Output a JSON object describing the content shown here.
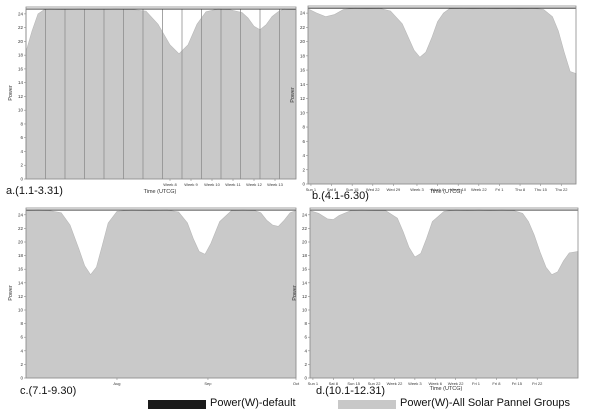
{
  "chart_data": [
    {
      "type": "area",
      "panel_label": "a.(1.1-3.31)",
      "xlabel": "Time (UTCG)",
      "ylabel": "Power",
      "ylim": [
        0,
        25
      ],
      "yticks": [
        0,
        2,
        4,
        6,
        8,
        10,
        12,
        14,
        16,
        18,
        20,
        22,
        24
      ],
      "xlim": [
        0,
        90
      ],
      "xticks": [
        {
          "x": 48,
          "label": "Week 8"
        },
        {
          "x": 55,
          "label": "Week 9"
        },
        {
          "x": 62,
          "label": "Week 10"
        },
        {
          "x": 69,
          "label": "Week 11"
        },
        {
          "x": 76,
          "label": "Week 12"
        },
        {
          "x": 83,
          "label": "Week 13"
        }
      ],
      "vlines": [
        0,
        6.5,
        13,
        19.5,
        26,
        32.5,
        39,
        45.5,
        52,
        58.5,
        65,
        71.5,
        78,
        84.5
      ],
      "x": [
        0,
        2,
        4,
        6,
        8,
        12,
        18,
        24,
        30,
        36,
        40,
        44,
        48,
        51,
        54,
        57,
        60,
        64,
        68,
        72,
        74,
        76,
        78,
        80,
        82,
        84,
        86,
        88,
        90
      ],
      "values": [
        18.5,
        21.5,
        24,
        24.6,
        24.7,
        24.6,
        24.7,
        24.6,
        24.7,
        24.6,
        24.4,
        22.5,
        19.5,
        18.2,
        19.5,
        22.5,
        24.3,
        24.7,
        24.6,
        24.2,
        23.4,
        22.2,
        21.7,
        22.4,
        23.6,
        24.3,
        24.7,
        24.6,
        24.6
      ],
      "default_level": 24.7
    },
    {
      "type": "area",
      "panel_label": "b.(4.1-6.30)",
      "xlabel": "Time (UTCG)",
      "ylabel": "Power",
      "ylim": [
        0,
        25
      ],
      "yticks": [
        0,
        2,
        4,
        6,
        8,
        10,
        12,
        14,
        16,
        18,
        20,
        22,
        24
      ],
      "xlim": [
        0,
        91
      ],
      "xticks": [
        {
          "x": 1,
          "label": "Sun 1"
        },
        {
          "x": 8,
          "label": "Sat 8"
        },
        {
          "x": 15,
          "label": "Sun 15"
        },
        {
          "x": 22,
          "label": "Wed 22"
        },
        {
          "x": 29,
          "label": "Wed 29"
        },
        {
          "x": 37,
          "label": "Week 3"
        },
        {
          "x": 44,
          "label": "Week 6"
        },
        {
          "x": 51,
          "label": "Week 10"
        },
        {
          "x": 58,
          "label": "Week 22"
        },
        {
          "x": 65,
          "label": "Fri 1"
        },
        {
          "x": 72,
          "label": "Thu 8"
        },
        {
          "x": 79,
          "label": "Thu 15"
        },
        {
          "x": 86,
          "label": "Thu 22"
        }
      ],
      "x": [
        0,
        3,
        6,
        9,
        12,
        16,
        20,
        24,
        28,
        32,
        36,
        38,
        40,
        42,
        44,
        46,
        48,
        52,
        56,
        60,
        64,
        68,
        72,
        76,
        80,
        83,
        85,
        87,
        89,
        91
      ],
      "values": [
        24.6,
        24,
        23.5,
        23.8,
        24.5,
        24.7,
        24.6,
        24.7,
        24.3,
        22.5,
        18.8,
        17.8,
        18.5,
        20.5,
        22.8,
        24,
        24.6,
        24.7,
        24.6,
        24.7,
        24.6,
        24.7,
        24.6,
        24.7,
        24.5,
        23.5,
        21.5,
        18.5,
        15.8,
        15.5
      ],
      "default_level": 24.7
    },
    {
      "type": "area",
      "panel_label": "c.(7.1-9.30)",
      "xlabel": "",
      "ylabel": "Power",
      "ylim": [
        0,
        25
      ],
      "yticks": [
        0,
        2,
        4,
        6,
        8,
        10,
        12,
        14,
        16,
        18,
        20,
        22,
        24
      ],
      "xlim": [
        0,
        92
      ],
      "xticks": [
        {
          "x": 31,
          "label": "Aug"
        },
        {
          "x": 62,
          "label": "Sep"
        },
        {
          "x": 92,
          "label": "Oct"
        }
      ],
      "x": [
        0,
        4,
        8,
        12,
        15,
        18,
        20,
        22,
        24,
        26,
        28,
        31,
        36,
        42,
        48,
        52,
        55,
        57,
        59,
        61,
        63,
        66,
        70,
        74,
        78,
        80,
        82,
        84,
        86,
        88,
        90,
        92
      ],
      "values": [
        24.6,
        24.7,
        24.6,
        24.3,
        22.5,
        19,
        16.5,
        15.2,
        16.3,
        19.5,
        22.8,
        24.5,
        24.7,
        24.6,
        24.7,
        24.4,
        22.8,
        20.5,
        18.6,
        18.2,
        19.8,
        23,
        24.6,
        24.7,
        24.6,
        24.3,
        23.2,
        22.5,
        22.3,
        23.2,
        24.3,
        24.6
      ],
      "default_level": 24.7
    },
    {
      "type": "area",
      "panel_label": "d.(10.1-12.31)",
      "xlabel": "Time (UTCG)",
      "ylabel": "Power",
      "ylim": [
        0,
        25
      ],
      "yticks": [
        0,
        2,
        4,
        6,
        8,
        10,
        12,
        14,
        16,
        18,
        20,
        22,
        24
      ],
      "xlim": [
        0,
        92
      ],
      "xticks": [
        {
          "x": 1,
          "label": "Sun 1"
        },
        {
          "x": 8,
          "label": "Sat 8"
        },
        {
          "x": 15,
          "label": "Sun 15"
        },
        {
          "x": 22,
          "label": "Sun 22"
        },
        {
          "x": 29,
          "label": "Week 22"
        },
        {
          "x": 36,
          "label": "Week 3"
        },
        {
          "x": 43,
          "label": "Week 6"
        },
        {
          "x": 50,
          "label": "Week 22"
        },
        {
          "x": 57,
          "label": "Fri 1"
        },
        {
          "x": 64,
          "label": "Fri 8"
        },
        {
          "x": 71,
          "label": "Fri 15"
        },
        {
          "x": 78,
          "label": "Fri 22"
        }
      ],
      "x": [
        0,
        3,
        6,
        8,
        10,
        14,
        18,
        22,
        26,
        30,
        32,
        34,
        36,
        38,
        40,
        42,
        46,
        50,
        54,
        58,
        62,
        66,
        70,
        73,
        75,
        77,
        79,
        81,
        83,
        85,
        87,
        89,
        92
      ],
      "values": [
        24.6,
        24.2,
        23.4,
        23.3,
        23.9,
        24.6,
        24.7,
        24.6,
        24.6,
        23.5,
        21.5,
        19.2,
        17.8,
        18.3,
        20.5,
        23,
        24.5,
        24.7,
        24.6,
        24.7,
        24.6,
        24.7,
        24.6,
        24.2,
        23,
        21,
        18.5,
        16.3,
        15.2,
        15.6,
        17.2,
        18.4,
        18.6
      ],
      "default_level": 24.7
    }
  ],
  "legend": {
    "items": [
      {
        "label": "Power(W)-default",
        "color": "#1a1a1a"
      },
      {
        "label": "Power(W)-All Solar Pannel Groups",
        "color": "#c8c8c8"
      }
    ]
  },
  "colors": {
    "fill": "#c9c9c9",
    "default_line": "#2a2a2a",
    "frame": "#8a8a8a",
    "vline": "#8e8e8e",
    "text": "#333333"
  }
}
